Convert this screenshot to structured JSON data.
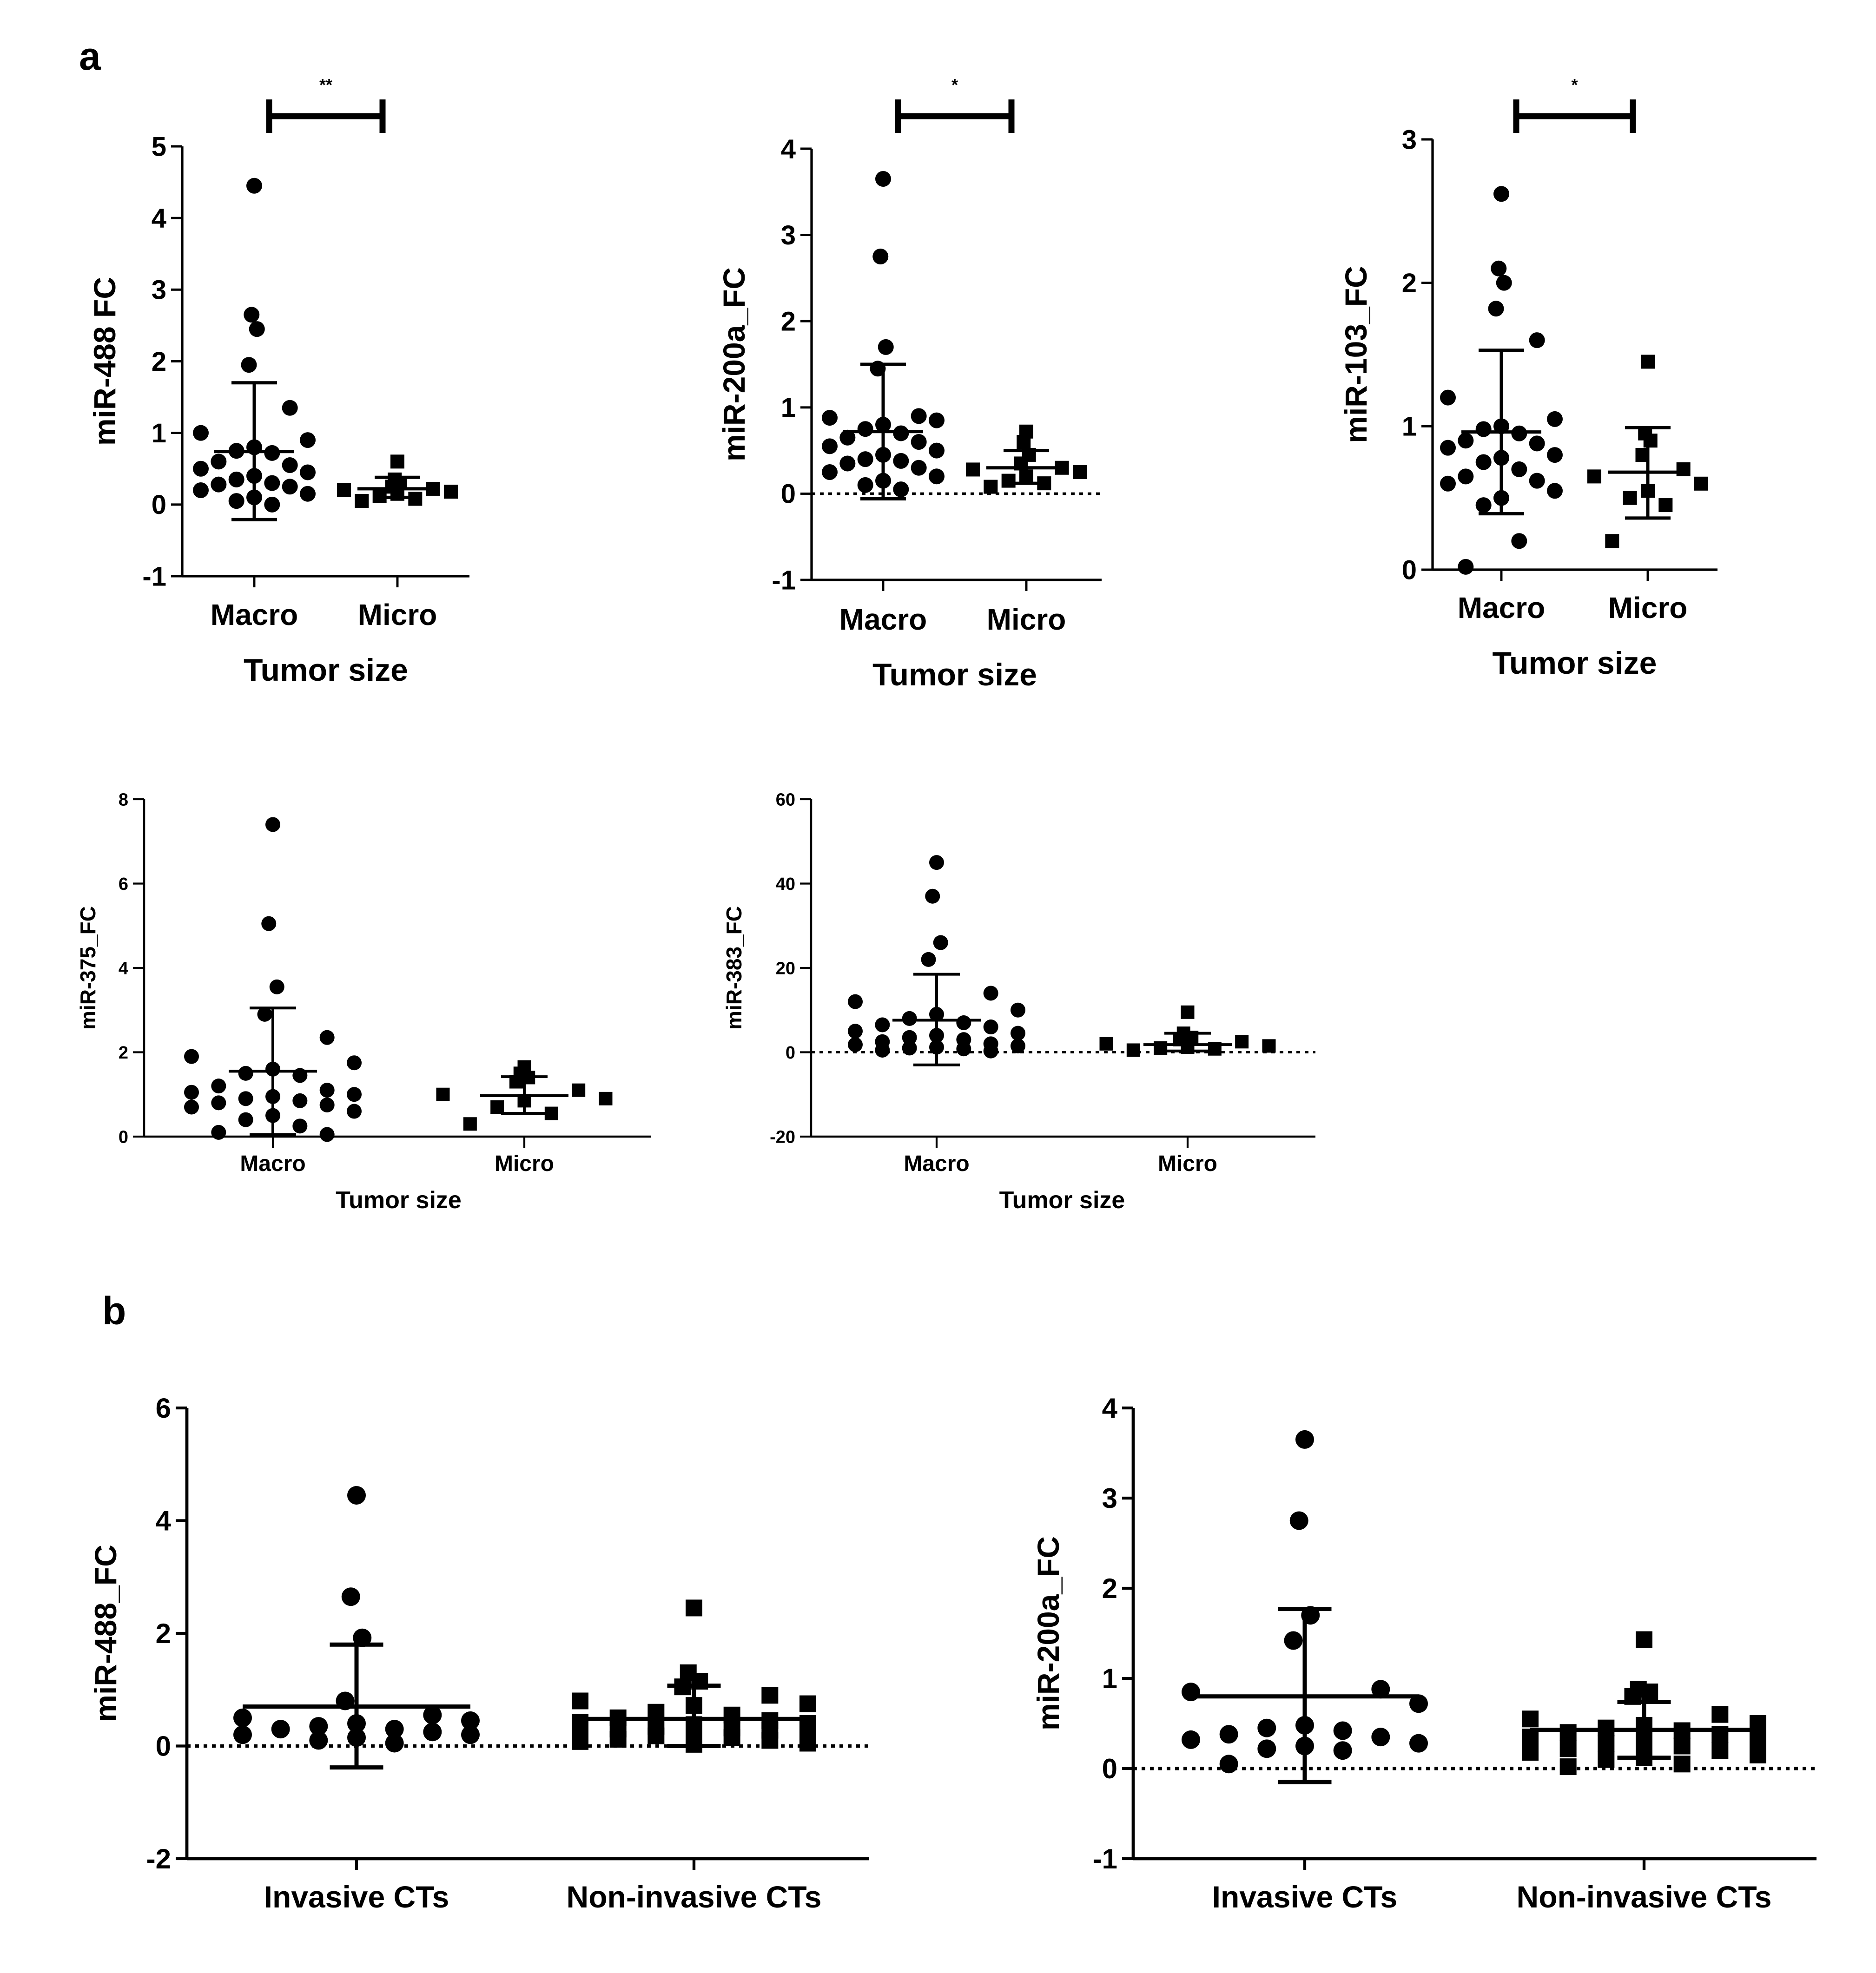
{
  "figure": {
    "panel_a_label": "a",
    "panel_b_label": "b"
  },
  "chart_data": [
    {
      "id": "a1",
      "type": "scatter",
      "panel": "a",
      "title": "",
      "xlabel": "Tumor size",
      "ylabel": "miR-488 FC",
      "ylim": [
        -1,
        5
      ],
      "yticks": [
        -1,
        0,
        1,
        2,
        3,
        4,
        5
      ],
      "zero_line": false,
      "significance": "**",
      "groups": [
        {
          "name": "Macro",
          "marker": "circle",
          "mean": 0.74,
          "sd_lower": -0.21,
          "sd_upper": 1.7,
          "values": [
            4.45,
            2.65,
            2.45,
            1.95,
            1.35,
            1.0,
            0.9,
            0.8,
            0.75,
            0.72,
            0.6,
            0.55,
            0.5,
            0.45,
            0.4,
            0.35,
            0.3,
            0.28,
            0.25,
            0.2,
            0.15,
            0.1,
            0.05,
            0.0
          ]
        },
        {
          "name": "Micro",
          "marker": "square",
          "mean": 0.22,
          "sd_lower": 0.1,
          "sd_upper": 0.38,
          "values": [
            0.6,
            0.35,
            0.3,
            0.25,
            0.22,
            0.2,
            0.18,
            0.15,
            0.12,
            0.08,
            0.05
          ]
        }
      ]
    },
    {
      "id": "a2",
      "type": "scatter",
      "panel": "a",
      "title": "",
      "xlabel": "Tumor size",
      "ylabel": "miR-200a_FC",
      "ylim": [
        -1,
        4
      ],
      "yticks": [
        -1,
        0,
        1,
        2,
        3,
        4
      ],
      "zero_line": true,
      "significance": "*",
      "groups": [
        {
          "name": "Macro",
          "marker": "circle",
          "mean": 0.72,
          "sd_lower": -0.06,
          "sd_upper": 1.5,
          "values": [
            3.65,
            2.75,
            1.7,
            1.45,
            0.9,
            0.88,
            0.85,
            0.8,
            0.75,
            0.7,
            0.65,
            0.6,
            0.55,
            0.5,
            0.45,
            0.4,
            0.38,
            0.35,
            0.3,
            0.25,
            0.2,
            0.15,
            0.1,
            0.05
          ]
        },
        {
          "name": "Micro",
          "marker": "square",
          "mean": 0.3,
          "sd_lower": 0.12,
          "sd_upper": 0.5,
          "values": [
            0.72,
            0.6,
            0.45,
            0.35,
            0.3,
            0.28,
            0.25,
            0.2,
            0.15,
            0.12,
            0.08
          ]
        }
      ]
    },
    {
      "id": "a3",
      "type": "scatter",
      "panel": "a",
      "title": "",
      "xlabel": "Tumor size",
      "ylabel": "miR-103_FC",
      "ylim": [
        0,
        3
      ],
      "yticks": [
        0,
        1,
        2,
        3
      ],
      "zero_line": false,
      "significance": "*",
      "groups": [
        {
          "name": "Macro",
          "marker": "circle",
          "mean": 0.96,
          "sd_lower": 0.39,
          "sd_upper": 1.53,
          "values": [
            2.62,
            2.1,
            2.0,
            1.82,
            1.6,
            1.2,
            1.05,
            1.0,
            0.98,
            0.95,
            0.9,
            0.88,
            0.85,
            0.8,
            0.78,
            0.75,
            0.7,
            0.65,
            0.62,
            0.6,
            0.55,
            0.5,
            0.45,
            0.2,
            0.02
          ]
        },
        {
          "name": "Micro",
          "marker": "square",
          "mean": 0.68,
          "sd_lower": 0.36,
          "sd_upper": 0.99,
          "values": [
            1.45,
            0.95,
            0.9,
            0.8,
            0.7,
            0.65,
            0.6,
            0.55,
            0.5,
            0.45,
            0.2
          ]
        }
      ]
    },
    {
      "id": "a4",
      "type": "scatter",
      "panel": "a",
      "title": "",
      "xlabel": "Tumor size",
      "ylabel": "miR-375_FC",
      "ylim": [
        0,
        8
      ],
      "yticks": [
        0,
        2,
        4,
        6,
        8
      ],
      "zero_line": false,
      "significance": "",
      "groups": [
        {
          "name": "Macro",
          "marker": "circle",
          "mean": 1.55,
          "sd_lower": 0.05,
          "sd_upper": 3.05,
          "values": [
            7.4,
            5.05,
            3.55,
            2.9,
            2.35,
            1.9,
            1.75,
            1.6,
            1.5,
            1.45,
            1.2,
            1.1,
            1.05,
            1.0,
            0.95,
            0.9,
            0.85,
            0.8,
            0.75,
            0.7,
            0.6,
            0.5,
            0.4,
            0.25,
            0.1,
            0.05
          ]
        },
        {
          "name": "Micro",
          "marker": "square",
          "mean": 0.97,
          "sd_lower": 0.55,
          "sd_upper": 1.42,
          "values": [
            1.65,
            1.5,
            1.4,
            1.3,
            1.1,
            1.0,
            0.9,
            0.85,
            0.7,
            0.55,
            0.3
          ]
        }
      ]
    },
    {
      "id": "a5",
      "type": "scatter",
      "panel": "a",
      "title": "",
      "xlabel": "Tumor size",
      "ylabel": "miR-383_FC",
      "ylim": [
        -20,
        60
      ],
      "yticks": [
        -20,
        0,
        20,
        40,
        60
      ],
      "zero_line": true,
      "significance": "",
      "groups": [
        {
          "name": "Macro",
          "marker": "circle",
          "mean": 7.6,
          "sd_lower": -3.0,
          "sd_upper": 18.5,
          "values": [
            45,
            37,
            26,
            22,
            14,
            12,
            10,
            9,
            8,
            7,
            6.5,
            6,
            5,
            4.5,
            4,
            3.5,
            3,
            2.5,
            2,
            1.8,
            1.5,
            1.2,
            1,
            0.8,
            0.5,
            0.3
          ]
        },
        {
          "name": "Micro",
          "marker": "square",
          "mean": 1.8,
          "sd_lower": 0.3,
          "sd_upper": 4.5,
          "values": [
            9.5,
            4.5,
            3.5,
            3.0,
            2.5,
            2.0,
            1.5,
            1.2,
            1.0,
            0.8,
            0.5
          ]
        }
      ]
    },
    {
      "id": "b1",
      "type": "scatter",
      "panel": "b",
      "title": "",
      "xlabel": "",
      "ylabel": "miR-488_FC",
      "ylim": [
        -2,
        6
      ],
      "yticks": [
        -2,
        0,
        2,
        4,
        6
      ],
      "zero_line": true,
      "significance": "",
      "groups": [
        {
          "name": "Invasive CTs",
          "marker": "circle",
          "mean": 0.7,
          "sd_lower": -0.38,
          "sd_upper": 1.8,
          "values": [
            4.45,
            2.65,
            1.92,
            0.8,
            0.55,
            0.5,
            0.45,
            0.4,
            0.35,
            0.3,
            0.3,
            0.25,
            0.2,
            0.2,
            0.15,
            0.1,
            0.05
          ]
        },
        {
          "name": "Non-invasive CTs",
          "marker": "square",
          "mean": 0.48,
          "sd_lower": 0.0,
          "sd_upper": 1.07,
          "values": [
            2.45,
            1.3,
            1.15,
            1.05,
            0.9,
            0.8,
            0.75,
            0.72,
            0.6,
            0.55,
            0.5,
            0.45,
            0.42,
            0.4,
            0.38,
            0.35,
            0.32,
            0.3,
            0.28,
            0.25,
            0.22,
            0.2,
            0.18,
            0.15,
            0.12,
            0.1,
            0.08,
            0.05,
            0.03
          ]
        }
      ]
    },
    {
      "id": "b2",
      "type": "scatter",
      "panel": "b",
      "title": "",
      "xlabel": "",
      "ylabel": "miR-200a_FC",
      "ylim": [
        -1,
        4
      ],
      "yticks": [
        -1,
        0,
        1,
        2,
        3,
        4
      ],
      "zero_line": true,
      "significance": "",
      "groups": [
        {
          "name": "Invasive CTs",
          "marker": "circle",
          "mean": 0.8,
          "sd_lower": -0.15,
          "sd_upper": 1.77,
          "values": [
            3.65,
            2.75,
            1.7,
            1.42,
            0.88,
            0.85,
            0.72,
            0.48,
            0.45,
            0.42,
            0.38,
            0.35,
            0.32,
            0.28,
            0.25,
            0.22,
            0.2,
            0.05
          ]
        },
        {
          "name": "Non-invasive CTs",
          "marker": "square",
          "mean": 0.43,
          "sd_lower": 0.12,
          "sd_upper": 0.74,
          "values": [
            1.43,
            0.88,
            0.85,
            0.8,
            0.6,
            0.55,
            0.5,
            0.48,
            0.45,
            0.42,
            0.4,
            0.38,
            0.35,
            0.32,
            0.3,
            0.28,
            0.25,
            0.22,
            0.2,
            0.18,
            0.15,
            0.12,
            0.1,
            0.05,
            0.02
          ]
        }
      ]
    }
  ]
}
